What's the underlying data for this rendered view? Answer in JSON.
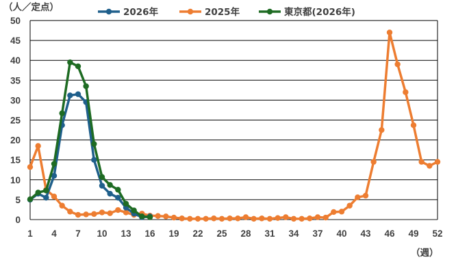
{
  "chart_data": {
    "type": "line",
    "ylabel": "（人／定点）",
    "xlabel": "（週）",
    "ylim": [
      0,
      50
    ],
    "yticks": [
      "0",
      "5",
      "10",
      "15",
      "20",
      "25",
      "30",
      "35",
      "40",
      "45",
      "50"
    ],
    "xlim": [
      1,
      52
    ],
    "xticks": [
      "1",
      "4",
      "7",
      "10",
      "13",
      "16",
      "19",
      "22",
      "25",
      "28",
      "31",
      "34",
      "37",
      "40",
      "43",
      "46",
      "49",
      "52"
    ],
    "grid": "horizontal",
    "legend_position": "top",
    "series": [
      {
        "name": "2026年",
        "color": "#1f5f8b",
        "x": [
          1,
          2,
          3,
          4,
          5,
          6,
          7,
          8,
          9,
          10,
          11,
          12,
          13,
          14,
          15,
          16
        ],
        "values": [
          5.0,
          6.5,
          5.5,
          11.0,
          23.7,
          31.2,
          31.5,
          29.5,
          15.0,
          8.5,
          6.5,
          5.5,
          3.0,
          1.5,
          0.6,
          0.8
        ]
      },
      {
        "name": "2025年",
        "color": "#ed7d31",
        "x": [
          1,
          2,
          3,
          4,
          5,
          6,
          7,
          8,
          9,
          10,
          11,
          12,
          13,
          14,
          15,
          16,
          17,
          18,
          19,
          20,
          21,
          22,
          23,
          24,
          25,
          26,
          27,
          28,
          29,
          30,
          31,
          32,
          33,
          34,
          35,
          36,
          37,
          38,
          39,
          40,
          41,
          42,
          43,
          44,
          45,
          46,
          47,
          48,
          49,
          50,
          51,
          52
        ],
        "values": [
          13.2,
          18.5,
          7.5,
          5.8,
          3.5,
          2.0,
          1.2,
          1.3,
          1.4,
          1.8,
          1.6,
          2.4,
          1.8,
          1.2,
          1.5,
          1.0,
          0.9,
          0.8,
          0.5,
          0.3,
          0.2,
          0.2,
          0.2,
          0.3,
          0.2,
          0.3,
          0.3,
          0.6,
          0.2,
          0.3,
          0.2,
          0.4,
          0.6,
          0.2,
          0.2,
          0.3,
          0.6,
          0.5,
          1.9,
          2.0,
          3.5,
          5.6,
          6.0,
          14.5,
          22.5,
          47.0,
          39.0,
          32.0,
          23.7,
          14.5,
          13.5,
          14.5
        ]
      },
      {
        "name": "東京都(2026年)",
        "color": "#1e6b23",
        "x": [
          1,
          2,
          3,
          4,
          5,
          6,
          7,
          8,
          9,
          10,
          11,
          12,
          13,
          14,
          15,
          16
        ],
        "values": [
          5.1,
          6.8,
          7.3,
          14.0,
          26.7,
          39.5,
          38.5,
          33.5,
          19.0,
          10.7,
          8.7,
          7.5,
          4.0,
          2.3,
          0.8,
          0.6
        ]
      }
    ]
  }
}
